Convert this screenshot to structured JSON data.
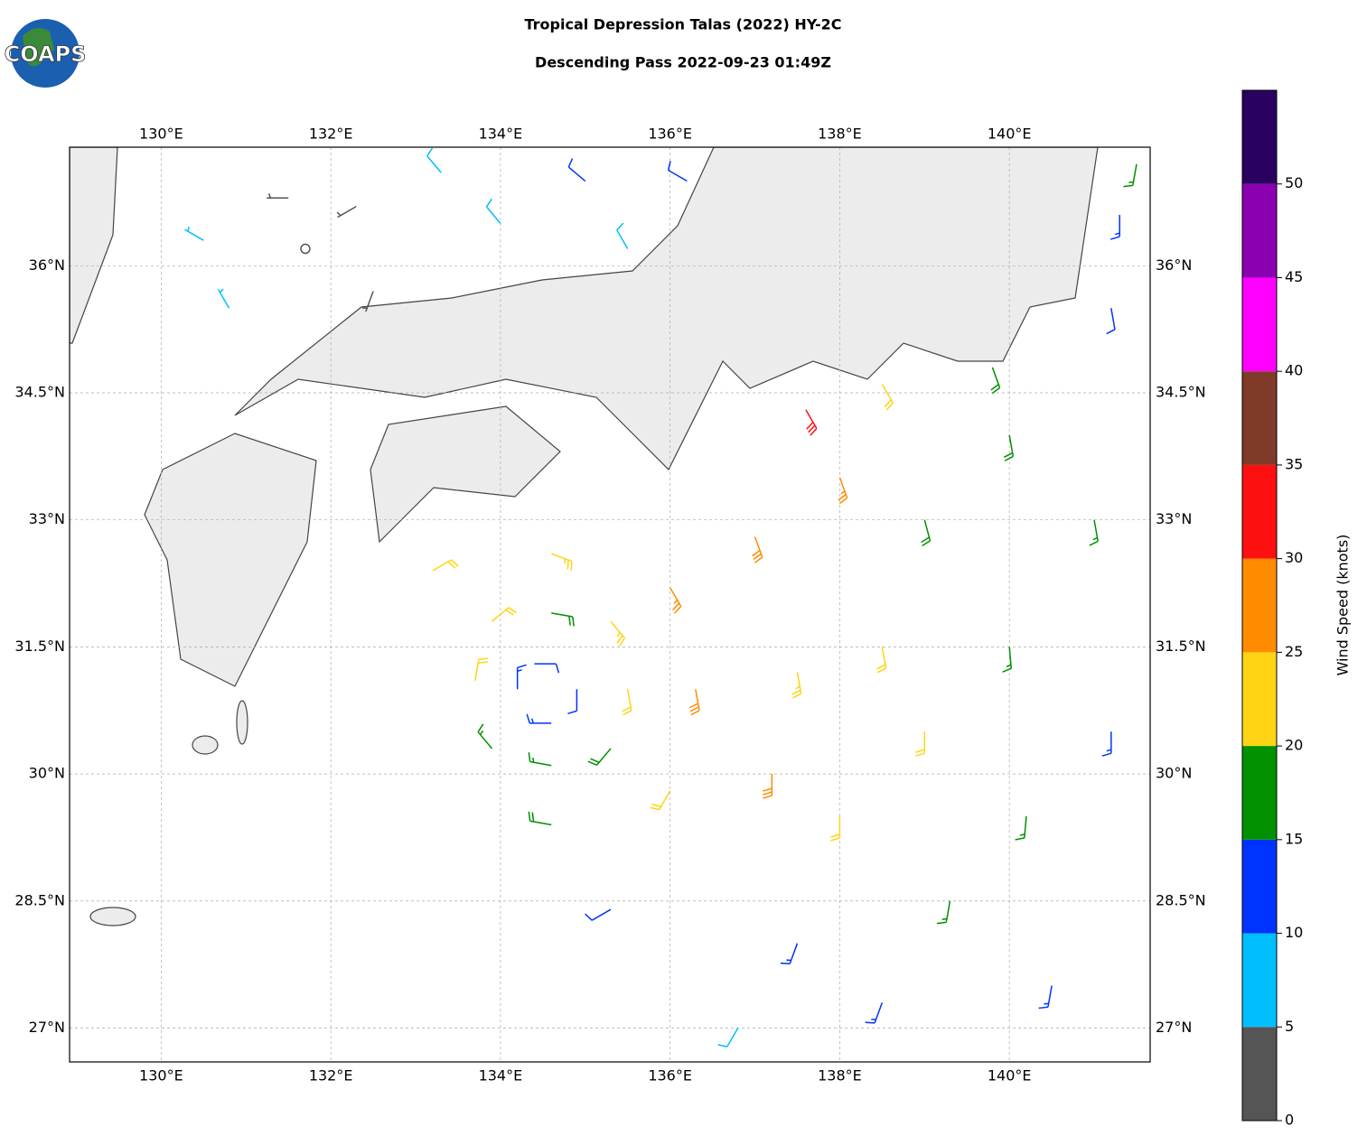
{
  "header": {
    "title": "Tropical Depression Talas (2022) HY-2C",
    "subtitle": "Descending Pass 2022-09-23 01:49Z",
    "logo": "COAPS"
  },
  "chart_data": {
    "type": "barb",
    "xlim": [
      128.92,
      141.66
    ],
    "ylim": [
      26.6,
      37.4
    ],
    "grid": true,
    "xticks": [
      {
        "value": 130,
        "label": "130°E"
      },
      {
        "value": 132,
        "label": "132°E"
      },
      {
        "value": 134,
        "label": "134°E"
      },
      {
        "value": 136,
        "label": "136°E"
      },
      {
        "value": 138,
        "label": "138°E"
      },
      {
        "value": 140,
        "label": "140°E"
      }
    ],
    "yticks": [
      {
        "value": 27,
        "label": "27°N"
      },
      {
        "value": 28.5,
        "label": "28.5°N"
      },
      {
        "value": 30,
        "label": "30°N"
      },
      {
        "value": 31.5,
        "label": "31.5°N"
      },
      {
        "value": 33,
        "label": "33°N"
      },
      {
        "value": 34.5,
        "label": "34.5°N"
      },
      {
        "value": 36,
        "label": "36°N"
      }
    ],
    "barbs": {
      "lon": [
        134.4,
        134.9,
        134.6,
        134.2,
        134.6,
        135.5,
        134.6,
        133.7,
        135.3,
        135.3,
        133.9,
        133.9,
        134.6,
        136.3,
        134.6,
        133.2,
        136.0,
        136.0,
        135.3,
        137.0,
        137.5,
        137.2,
        138.0,
        138.0,
        138.5,
        139.0,
        139.0,
        139.3,
        140.0,
        140.0,
        140.2,
        140.5,
        141.0,
        141.2,
        138.5,
        137.5,
        136.8,
        137.6,
        138.5,
        139.8,
        141.2,
        141.3,
        141.5,
        130.5,
        130.8,
        131.5,
        131.7,
        132.3,
        132.5,
        133.3,
        134.0,
        135.0,
        135.5,
        136.2
      ],
      "lat": [
        31.3,
        31.0,
        30.6,
        31.0,
        31.9,
        31.0,
        30.1,
        31.1,
        31.8,
        30.3,
        30.3,
        31.8,
        32.6,
        31.0,
        29.4,
        32.4,
        32.2,
        29.8,
        28.4,
        32.8,
        31.2,
        30.0,
        33.5,
        29.5,
        31.5,
        33.0,
        30.5,
        28.5,
        34.0,
        31.5,
        29.5,
        27.5,
        33.0,
        30.5,
        27.3,
        28.0,
        27.0,
        34.3,
        34.6,
        34.8,
        35.5,
        36.6,
        37.2,
        36.3,
        35.5,
        36.8,
        36.2,
        36.7,
        35.7,
        37.1,
        36.5,
        37.0,
        36.2,
        37.0
      ],
      "speed": [
        12,
        12,
        14,
        13,
        18,
        22,
        17,
        20,
        24,
        18,
        16,
        22,
        24,
        28,
        18,
        22,
        27,
        22,
        12,
        28,
        24,
        28,
        25,
        22,
        22,
        18,
        22,
        17,
        18,
        17,
        16,
        13,
        17,
        13,
        13,
        14,
        8,
        32,
        22,
        18,
        12,
        14,
        17,
        6,
        7,
        3,
        2,
        3,
        4,
        8,
        9,
        12,
        8,
        11
      ],
      "direction": [
        90,
        180,
        270,
        0,
        100,
        170,
        280,
        10,
        140,
        220,
        320,
        50,
        110,
        170,
        280,
        60,
        150,
        210,
        240,
        160,
        170,
        180,
        160,
        180,
        170,
        165,
        180,
        190,
        170,
        175,
        185,
        190,
        170,
        180,
        200,
        200,
        210,
        150,
        150,
        160,
        170,
        180,
        190,
        300,
        330,
        270,
        0,
        240,
        200,
        320,
        320,
        310,
        330,
        300
      ]
    },
    "colorbar": {
      "label": "Wind Speed (knots)",
      "bounds": [
        0,
        5,
        10,
        15,
        20,
        25,
        30,
        35,
        40,
        45,
        50,
        55
      ],
      "colors": [
        "#555555",
        "#00bfff",
        "#0033ff",
        "#009000",
        "#ffd414",
        "#ff8c00",
        "#ff1010",
        "#7f3a2a",
        "#ff00ff",
        "#8b00b0",
        "#2a0060"
      ],
      "ticks": [
        0,
        5,
        10,
        15,
        20,
        25,
        30,
        35,
        40,
        45,
        50
      ]
    }
  }
}
